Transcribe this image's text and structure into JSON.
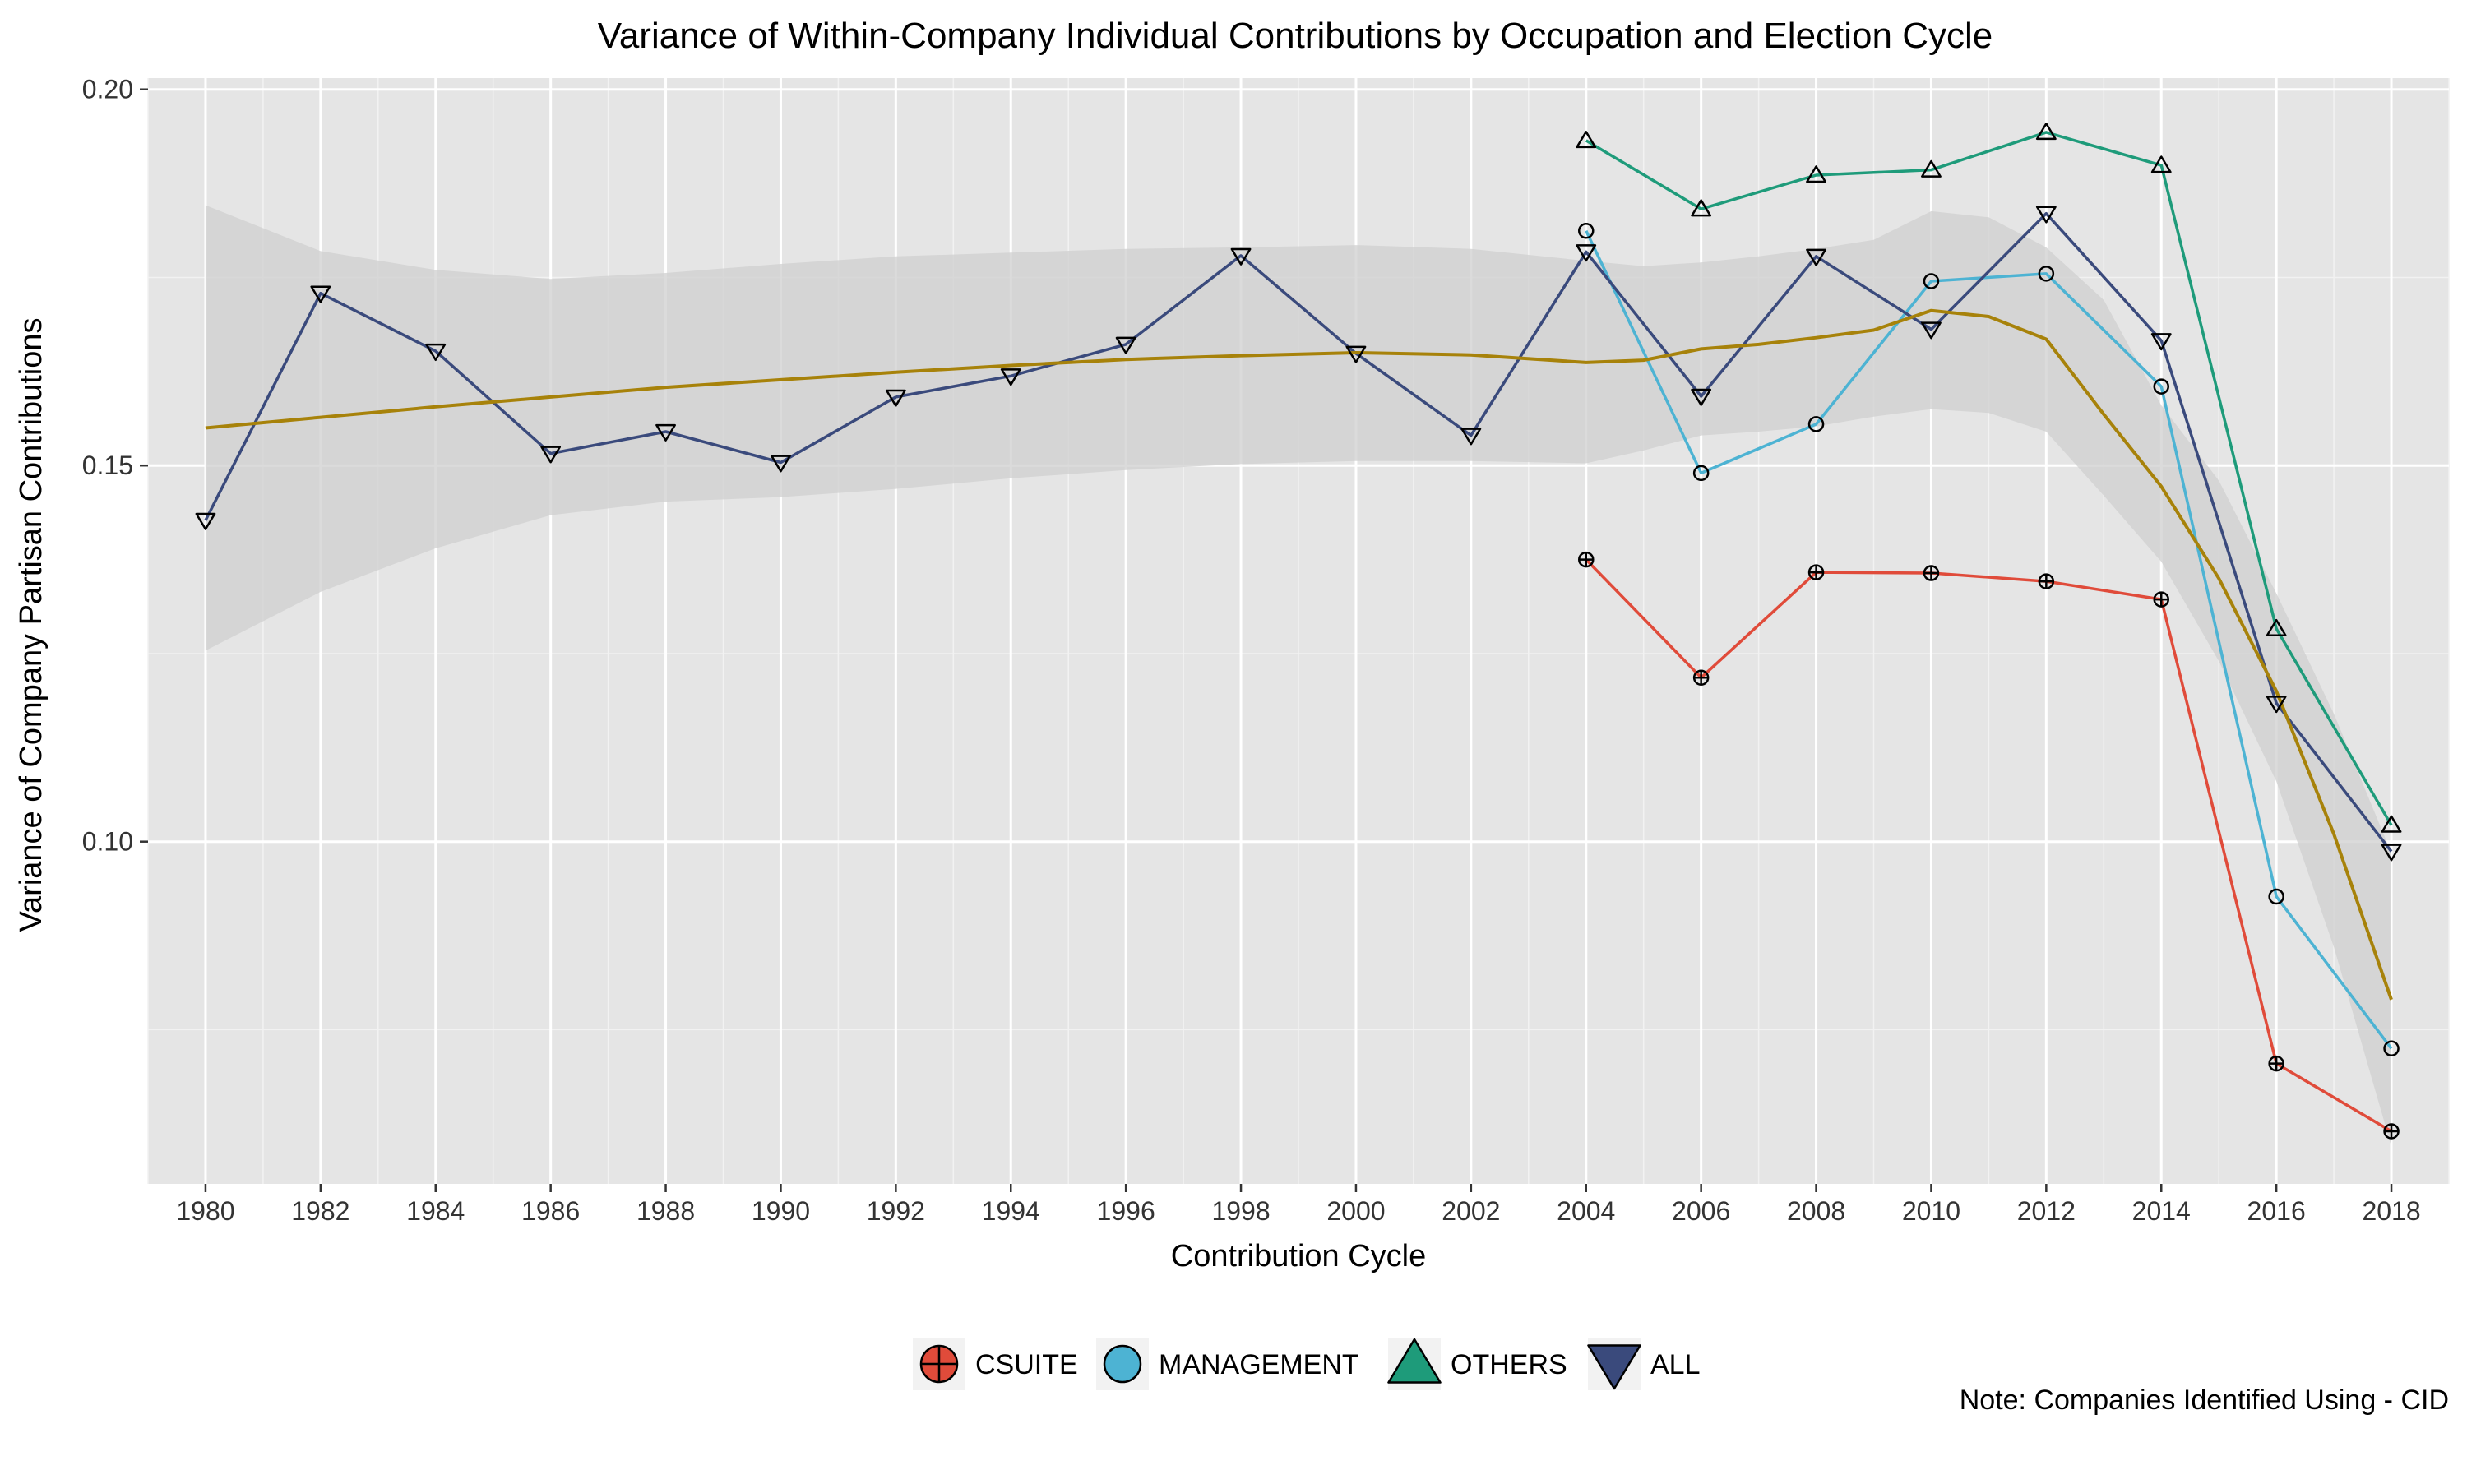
{
  "chart_data": {
    "type": "line",
    "title": "Variance of Within-Company Individual Contributions by Occupation and Election Cycle",
    "xlabel": "Contribution Cycle",
    "ylabel": "Variance of Company Partisan Contributions",
    "note": "Note: Companies Identified Using - CID",
    "xlim": [
      1979,
      2019
    ],
    "ylim": [
      0.0545,
      0.2015
    ],
    "x_ticks": [
      1980,
      1982,
      1984,
      1986,
      1988,
      1990,
      1992,
      1994,
      1996,
      1998,
      2000,
      2002,
      2004,
      2006,
      2008,
      2010,
      2012,
      2014,
      2016,
      2018
    ],
    "x_tick_labels": [
      "1980",
      "1982",
      "1984",
      "1986",
      "1988",
      "1990",
      "1992",
      "1994",
      "1996",
      "1998",
      "2000",
      "2002",
      "2004",
      "2006",
      "2008",
      "2010",
      "2012",
      "2014",
      "2016",
      "2018"
    ],
    "y_ticks": [
      0.1,
      0.15,
      0.2
    ],
    "y_tick_labels": [
      "0.10",
      "0.15",
      "0.20"
    ],
    "grid": true,
    "legend_position": "bottom",
    "series": [
      {
        "name": "CSUITE",
        "color": "#E04B3A",
        "marker": "circle-plus",
        "points": [
          [
            2004,
            0.1375
          ],
          [
            2006,
            0.1218
          ],
          [
            2008,
            0.1358
          ],
          [
            2010,
            0.1357
          ],
          [
            2012,
            0.1346
          ],
          [
            2014,
            0.1322
          ],
          [
            2016,
            0.0705
          ],
          [
            2018,
            0.0615
          ]
        ]
      },
      {
        "name": "MANAGEMENT",
        "color": "#4DB3D3",
        "marker": "circle",
        "points": [
          [
            2004,
            0.1812
          ],
          [
            2006,
            0.149
          ],
          [
            2008,
            0.1555
          ],
          [
            2010,
            0.1745
          ],
          [
            2012,
            0.1755
          ],
          [
            2014,
            0.1605
          ],
          [
            2016,
            0.0927
          ],
          [
            2018,
            0.0725
          ]
        ]
      },
      {
        "name": "OTHERS",
        "color": "#1E9B7A",
        "marker": "triangle-up",
        "points": [
          [
            2004,
            0.1932
          ],
          [
            2006,
            0.1841
          ],
          [
            2008,
            0.1886
          ],
          [
            2010,
            0.1893
          ],
          [
            2012,
            0.1943
          ],
          [
            2014,
            0.1899
          ],
          [
            2016,
            0.1283
          ],
          [
            2018,
            0.1022
          ]
        ]
      },
      {
        "name": "ALL",
        "color": "#3A4A7C",
        "marker": "triangle-down",
        "points": [
          [
            1980,
            0.1427
          ],
          [
            1982,
            0.1729
          ],
          [
            1984,
            0.1652
          ],
          [
            1986,
            0.1516
          ],
          [
            1988,
            0.1545
          ],
          [
            1990,
            0.1504
          ],
          [
            1992,
            0.1591
          ],
          [
            1994,
            0.1619
          ],
          [
            1996,
            0.1661
          ],
          [
            1998,
            0.1779
          ],
          [
            2000,
            0.1649
          ],
          [
            2002,
            0.154
          ],
          [
            2004,
            0.1784
          ],
          [
            2006,
            0.1592
          ],
          [
            2008,
            0.1778
          ],
          [
            2010,
            0.1681
          ],
          [
            2012,
            0.1835
          ],
          [
            2014,
            0.1666
          ],
          [
            2016,
            0.1184
          ],
          [
            2018,
            0.0987
          ]
        ]
      }
    ],
    "smooth": {
      "color": "#A7820A",
      "band_color": "#CFCFCF",
      "points": [
        {
          "x": 1980,
          "y": 0.155,
          "lo": 0.1254,
          "hi": 0.1846
        },
        {
          "x": 1982,
          "y": 0.1564,
          "lo": 0.1332,
          "hi": 0.1785
        },
        {
          "x": 1984,
          "y": 0.1578,
          "lo": 0.139,
          "hi": 0.176
        },
        {
          "x": 1986,
          "y": 0.1591,
          "lo": 0.1434,
          "hi": 0.1748
        },
        {
          "x": 1988,
          "y": 0.1604,
          "lo": 0.1452,
          "hi": 0.1756
        },
        {
          "x": 1990,
          "y": 0.1614,
          "lo": 0.1458,
          "hi": 0.1768
        },
        {
          "x": 1992,
          "y": 0.1624,
          "lo": 0.1469,
          "hi": 0.1778
        },
        {
          "x": 1994,
          "y": 0.1633,
          "lo": 0.1483,
          "hi": 0.1783
        },
        {
          "x": 1996,
          "y": 0.1641,
          "lo": 0.1494,
          "hi": 0.1788
        },
        {
          "x": 1998,
          "y": 0.1646,
          "lo": 0.1502,
          "hi": 0.179
        },
        {
          "x": 2000,
          "y": 0.165,
          "lo": 0.1506,
          "hi": 0.1793
        },
        {
          "x": 2002,
          "y": 0.1647,
          "lo": 0.1506,
          "hi": 0.1788
        },
        {
          "x": 2004,
          "y": 0.1637,
          "lo": 0.1503,
          "hi": 0.1772
        },
        {
          "x": 2005,
          "y": 0.164,
          "lo": 0.152,
          "hi": 0.1765
        },
        {
          "x": 2006,
          "y": 0.1655,
          "lo": 0.154,
          "hi": 0.177
        },
        {
          "x": 2007,
          "y": 0.1661,
          "lo": 0.1545,
          "hi": 0.1778
        },
        {
          "x": 2008,
          "y": 0.167,
          "lo": 0.1552,
          "hi": 0.1788
        },
        {
          "x": 2009,
          "y": 0.168,
          "lo": 0.1565,
          "hi": 0.18
        },
        {
          "x": 2010,
          "y": 0.1706,
          "lo": 0.1575,
          "hi": 0.1838
        },
        {
          "x": 2011,
          "y": 0.1698,
          "lo": 0.157,
          "hi": 0.183
        },
        {
          "x": 2012,
          "y": 0.1668,
          "lo": 0.1545,
          "hi": 0.179
        },
        {
          "x": 2013,
          "y": 0.1568,
          "lo": 0.146,
          "hi": 0.172
        },
        {
          "x": 2014,
          "y": 0.1472,
          "lo": 0.1372,
          "hi": 0.158
        },
        {
          "x": 2015,
          "y": 0.135,
          "lo": 0.124,
          "hi": 0.148
        },
        {
          "x": 2016,
          "y": 0.12,
          "lo": 0.108,
          "hi": 0.133
        },
        {
          "x": 2017,
          "y": 0.101,
          "lo": 0.086,
          "hi": 0.117
        },
        {
          "x": 2018,
          "y": 0.079,
          "lo": 0.0595,
          "hi": 0.0985
        }
      ]
    }
  }
}
